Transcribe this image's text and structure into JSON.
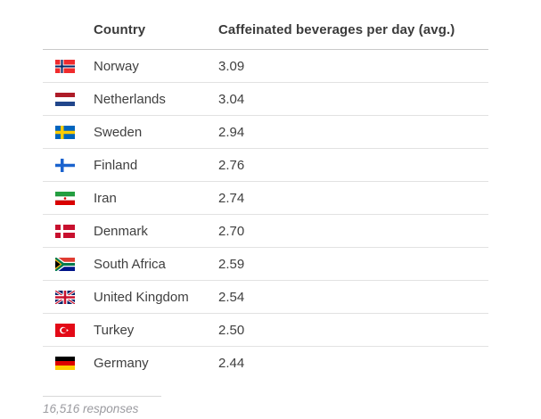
{
  "table": {
    "columns": {
      "country": "Country",
      "value": "Caffeinated beverages per day (avg.)"
    },
    "rows": [
      {
        "flag": "norway",
        "country": "Norway",
        "value": "3.09"
      },
      {
        "flag": "netherlands",
        "country": "Netherlands",
        "value": "3.04"
      },
      {
        "flag": "sweden",
        "country": "Sweden",
        "value": "2.94"
      },
      {
        "flag": "finland",
        "country": "Finland",
        "value": "2.76"
      },
      {
        "flag": "iran",
        "country": "Iran",
        "value": "2.74"
      },
      {
        "flag": "denmark",
        "country": "Denmark",
        "value": "2.70"
      },
      {
        "flag": "south-africa",
        "country": "South Africa",
        "value": "2.59"
      },
      {
        "flag": "united-kingdom",
        "country": "United Kingdom",
        "value": "2.54"
      },
      {
        "flag": "turkey",
        "country": "Turkey",
        "value": "2.50"
      },
      {
        "flag": "germany",
        "country": "Germany",
        "value": "2.44"
      }
    ],
    "footer": "16,516 responses"
  },
  "colors": {
    "header_text": "#3b3b3b",
    "row_text": "#3f3f3f",
    "row_divider": "#e2e2e2",
    "header_divider": "#c9c9c9",
    "footer_text": "#9b9ba0"
  },
  "chart_data": {
    "type": "table",
    "title": "",
    "columns": [
      "Country",
      "Caffeinated beverages per day (avg.)"
    ],
    "rows": [
      [
        "Norway",
        3.09
      ],
      [
        "Netherlands",
        3.04
      ],
      [
        "Sweden",
        2.94
      ],
      [
        "Finland",
        2.76
      ],
      [
        "Iran",
        2.74
      ],
      [
        "Denmark",
        2.7
      ],
      [
        "South Africa",
        2.59
      ],
      [
        "United Kingdom",
        2.54
      ],
      [
        "Turkey",
        2.5
      ],
      [
        "Germany",
        2.44
      ]
    ],
    "footnote": "16,516 responses"
  }
}
